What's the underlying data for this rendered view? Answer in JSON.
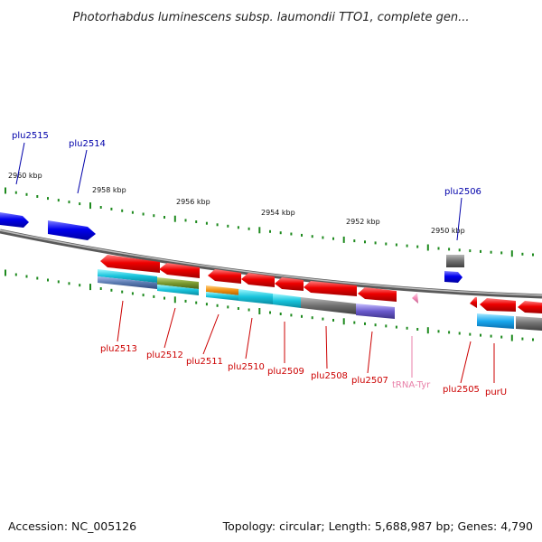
{
  "title": "Photorhabdus luminescens subsp. laumondii TTO1, complete gen...",
  "footer": {
    "accession": "Accession: NC_005126",
    "stats": "Topology: circular; Length: 5,688,987 bp; Genes: 4,790"
  },
  "colors": {
    "forward_label": "#0000aa",
    "reverse_label": "#cc0000",
    "trna_label": "#e87fa8",
    "backbone": "#7f7f7f",
    "tick": "#1e8a1e"
  },
  "scale_labels": [
    "2960 kbp",
    "2958 kbp",
    "2956 kbp",
    "2954 kbp",
    "2952 kbp",
    "2950 kbp"
  ],
  "forward_genes": [
    {
      "label": "plu2515",
      "color": "#0000ee"
    },
    {
      "label": "plu2514",
      "color": "#0000ee"
    },
    {
      "label": "plu2506",
      "color": "#0000ee"
    }
  ],
  "reverse_genes": [
    {
      "label": "plu2513",
      "color": "#ee0000"
    },
    {
      "label": "plu2512",
      "color": "#ee0000"
    },
    {
      "label": "plu2511",
      "color": "#ee0000"
    },
    {
      "label": "plu2510",
      "color": "#ee0000"
    },
    {
      "label": "plu2509",
      "color": "#ee0000"
    },
    {
      "label": "plu2508",
      "color": "#ee0000"
    },
    {
      "label": "plu2507",
      "color": "#ee0000"
    },
    {
      "label": "tRNA-Tyr",
      "color": "#f4a6c4"
    },
    {
      "label": "plu2505",
      "color": "#ee0000"
    },
    {
      "label": "purU",
      "color": "#ee0000"
    }
  ]
}
